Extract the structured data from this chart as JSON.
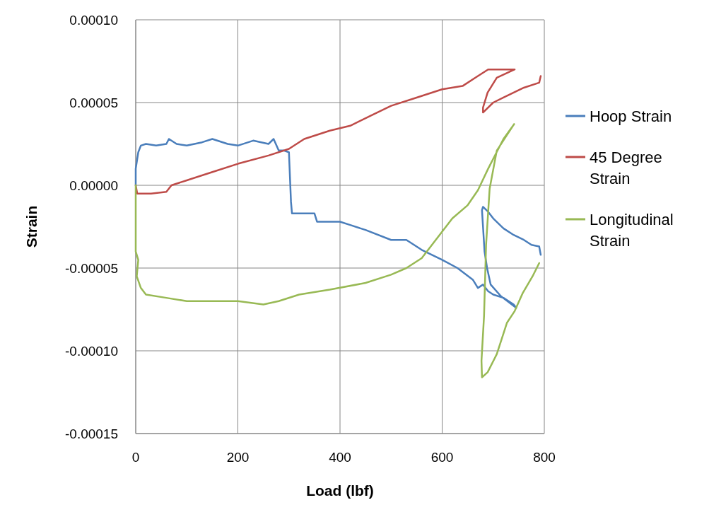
{
  "chart_data": {
    "type": "line",
    "xlabel": "Load (lbf)",
    "ylabel": "Strain",
    "xlim": [
      0,
      800
    ],
    "ylim": [
      -0.00015,
      0.0001
    ],
    "xticks": [
      0,
      200,
      400,
      600,
      800
    ],
    "yticks": [
      {
        "value": -0.00015,
        "label": "-0.00015"
      },
      {
        "value": -0.0001,
        "label": "-0.00010"
      },
      {
        "value": -5e-05,
        "label": "-0.00005"
      },
      {
        "value": 0,
        "label": "0.00000"
      },
      {
        "value": 5e-05,
        "label": "0.00005"
      },
      {
        "value": 0.0001,
        "label": "0.00010"
      }
    ],
    "grid": true,
    "legend": "right",
    "marker": "none",
    "line_style": "solid",
    "series": [
      {
        "name": "Hoop Strain",
        "color": "#4a7ebb",
        "x": [
          0,
          0,
          5,
          10,
          20,
          40,
          60,
          65,
          80,
          100,
          130,
          150,
          180,
          200,
          230,
          260,
          270,
          280,
          290,
          300,
          302,
          304,
          306,
          330,
          350,
          355,
          360,
          400,
          420,
          450,
          500,
          530,
          560,
          600,
          630,
          660,
          670,
          680,
          690,
          700,
          720,
          740,
          745,
          715,
          695,
          688,
          683,
          680,
          678,
          680,
          690,
          700,
          720,
          740,
          760,
          775,
          790,
          793
        ],
        "values": [
          0,
          1e-05,
          2e-05,
          2.4e-05,
          2.5e-05,
          2.4e-05,
          2.5e-05,
          2.8e-05,
          2.5e-05,
          2.4e-05,
          2.6e-05,
          2.8e-05,
          2.5e-05,
          2.4e-05,
          2.7e-05,
          2.5e-05,
          2.8e-05,
          2.1e-05,
          2.1e-05,
          2e-05,
          5e-06,
          -1e-05,
          -1.7e-05,
          -1.7e-05,
          -1.7e-05,
          -2.2e-05,
          -2.2e-05,
          -2.2e-05,
          -2.4e-05,
          -2.7e-05,
          -3.3e-05,
          -3.3e-05,
          -3.9e-05,
          -4.5e-05,
          -5e-05,
          -5.7e-05,
          -6.2e-05,
          -6e-05,
          -6.4e-05,
          -6.6e-05,
          -6.8e-05,
          -7.2e-05,
          -7.4e-05,
          -6.7e-05,
          -6e-05,
          -5e-05,
          -4e-05,
          -2.5e-05,
          -1.5e-05,
          -1.3e-05,
          -1.6e-05,
          -2e-05,
          -2.6e-05,
          -3e-05,
          -3.3e-05,
          -3.6e-05,
          -3.7e-05,
          -4.2e-05
        ]
      },
      {
        "name": "45 Degree Strain",
        "color": "#be4b48",
        "x": [
          0,
          3,
          30,
          60,
          70,
          100,
          150,
          200,
          260,
          300,
          330,
          380,
          420,
          460,
          500,
          550,
          600,
          640,
          670,
          690,
          742,
          707,
          689,
          680,
          680,
          700,
          720,
          740,
          760,
          790,
          793
        ],
        "values": [
          0,
          -5e-06,
          -5e-06,
          -4e-06,
          0,
          3e-06,
          8e-06,
          1.3e-05,
          1.8e-05,
          2.2e-05,
          2.8e-05,
          3.3e-05,
          3.6e-05,
          4.2e-05,
          4.8e-05,
          5.3e-05,
          5.8e-05,
          6e-05,
          6.6e-05,
          7e-05,
          7e-05,
          6.5e-05,
          5.6e-05,
          4.7e-05,
          4.4e-05,
          5e-05,
          5.3e-05,
          5.6e-05,
          5.9e-05,
          6.2e-05,
          6.6e-05
        ]
      },
      {
        "name": "Longitudinal Strain",
        "color": "#98b954",
        "x": [
          0,
          0,
          5,
          2,
          10,
          20,
          60,
          100,
          200,
          250,
          280,
          320,
          380,
          450,
          500,
          530,
          560,
          580,
          600,
          620,
          650,
          670,
          690,
          720,
          741,
          707,
          693,
          686,
          682,
          677,
          678,
          689,
          707,
          727,
          742,
          758,
          777,
          790
        ],
        "values": [
          0,
          -4e-05,
          -4.5e-05,
          -5.5e-05,
          -6.2e-05,
          -6.6e-05,
          -6.8e-05,
          -7e-05,
          -7e-05,
          -7.2e-05,
          -7e-05,
          -6.6e-05,
          -6.3e-05,
          -5.9e-05,
          -5.4e-05,
          -5e-05,
          -4.4e-05,
          -3.6e-05,
          -2.8e-05,
          -2e-05,
          -1.2e-05,
          -3e-06,
          1e-05,
          2.8e-05,
          3.7e-05,
          2.1e-05,
          -2e-06,
          -3.6e-05,
          -7.9e-05,
          -0.000106,
          -0.000116,
          -0.000113,
          -0.000102,
          -8.3e-05,
          -7.6e-05,
          -6.5e-05,
          -5.5e-05,
          -4.7e-05
        ]
      }
    ]
  }
}
